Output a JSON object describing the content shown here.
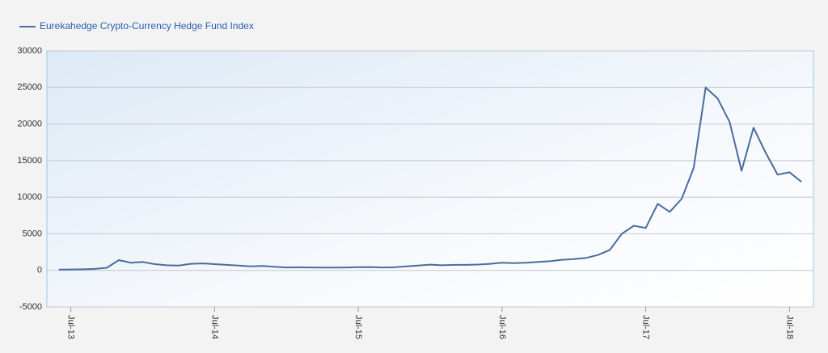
{
  "chart_data": {
    "type": "line",
    "x": [
      "2013-06",
      "2013-07",
      "2013-08",
      "2013-09",
      "2013-10",
      "2013-11",
      "2013-12",
      "2014-01",
      "2014-02",
      "2014-03",
      "2014-04",
      "2014-05",
      "2014-06",
      "2014-07",
      "2014-08",
      "2014-09",
      "2014-10",
      "2014-11",
      "2014-12",
      "2015-01",
      "2015-02",
      "2015-03",
      "2015-04",
      "2015-05",
      "2015-06",
      "2015-07",
      "2015-08",
      "2015-09",
      "2015-10",
      "2015-11",
      "2015-12",
      "2016-01",
      "2016-02",
      "2016-03",
      "2016-04",
      "2016-05",
      "2016-06",
      "2016-07",
      "2016-08",
      "2016-09",
      "2016-10",
      "2016-11",
      "2016-12",
      "2017-01",
      "2017-02",
      "2017-03",
      "2017-04",
      "2017-05",
      "2017-06",
      "2017-07",
      "2017-08",
      "2017-09",
      "2017-10",
      "2017-11",
      "2017-12",
      "2018-01",
      "2018-02",
      "2018-03",
      "2018-04",
      "2018-05",
      "2018-06",
      "2018-07",
      "2018-08"
    ],
    "series": [
      {
        "name": "Eurekahedge Crypto-Currency Hedge Fund Index",
        "color": "#4a6c9e",
        "values": [
          100,
          120,
          150,
          200,
          350,
          1400,
          1050,
          1150,
          850,
          700,
          650,
          900,
          950,
          850,
          750,
          650,
          550,
          600,
          500,
          400,
          420,
          400,
          380,
          380,
          400,
          430,
          450,
          400,
          420,
          550,
          650,
          780,
          700,
          750,
          750,
          800,
          900,
          1050,
          1000,
          1050,
          1150,
          1250,
          1450,
          1550,
          1700,
          2100,
          2800,
          5000,
          6100,
          5800,
          9100,
          8000,
          9800,
          14000,
          25000,
          23500,
          20300,
          13600,
          19500,
          16100,
          13100,
          13400,
          12100
        ]
      }
    ],
    "xlim": [
      "2013-05",
      "2018-09"
    ],
    "xticks": [
      {
        "value": "2013-07",
        "label": "Jul-13"
      },
      {
        "value": "2014-07",
        "label": "Jul-14"
      },
      {
        "value": "2015-07",
        "label": "Jul-15"
      },
      {
        "value": "2016-07",
        "label": "Jul-16"
      },
      {
        "value": "2017-07",
        "label": "Jul-17"
      },
      {
        "value": "2018-07",
        "label": "Jul-18"
      }
    ],
    "ylim": [
      -5000,
      30000
    ],
    "yticks": [
      -5000,
      0,
      5000,
      10000,
      15000,
      20000,
      25000,
      30000
    ],
    "grid": true,
    "legend": "top-left"
  }
}
